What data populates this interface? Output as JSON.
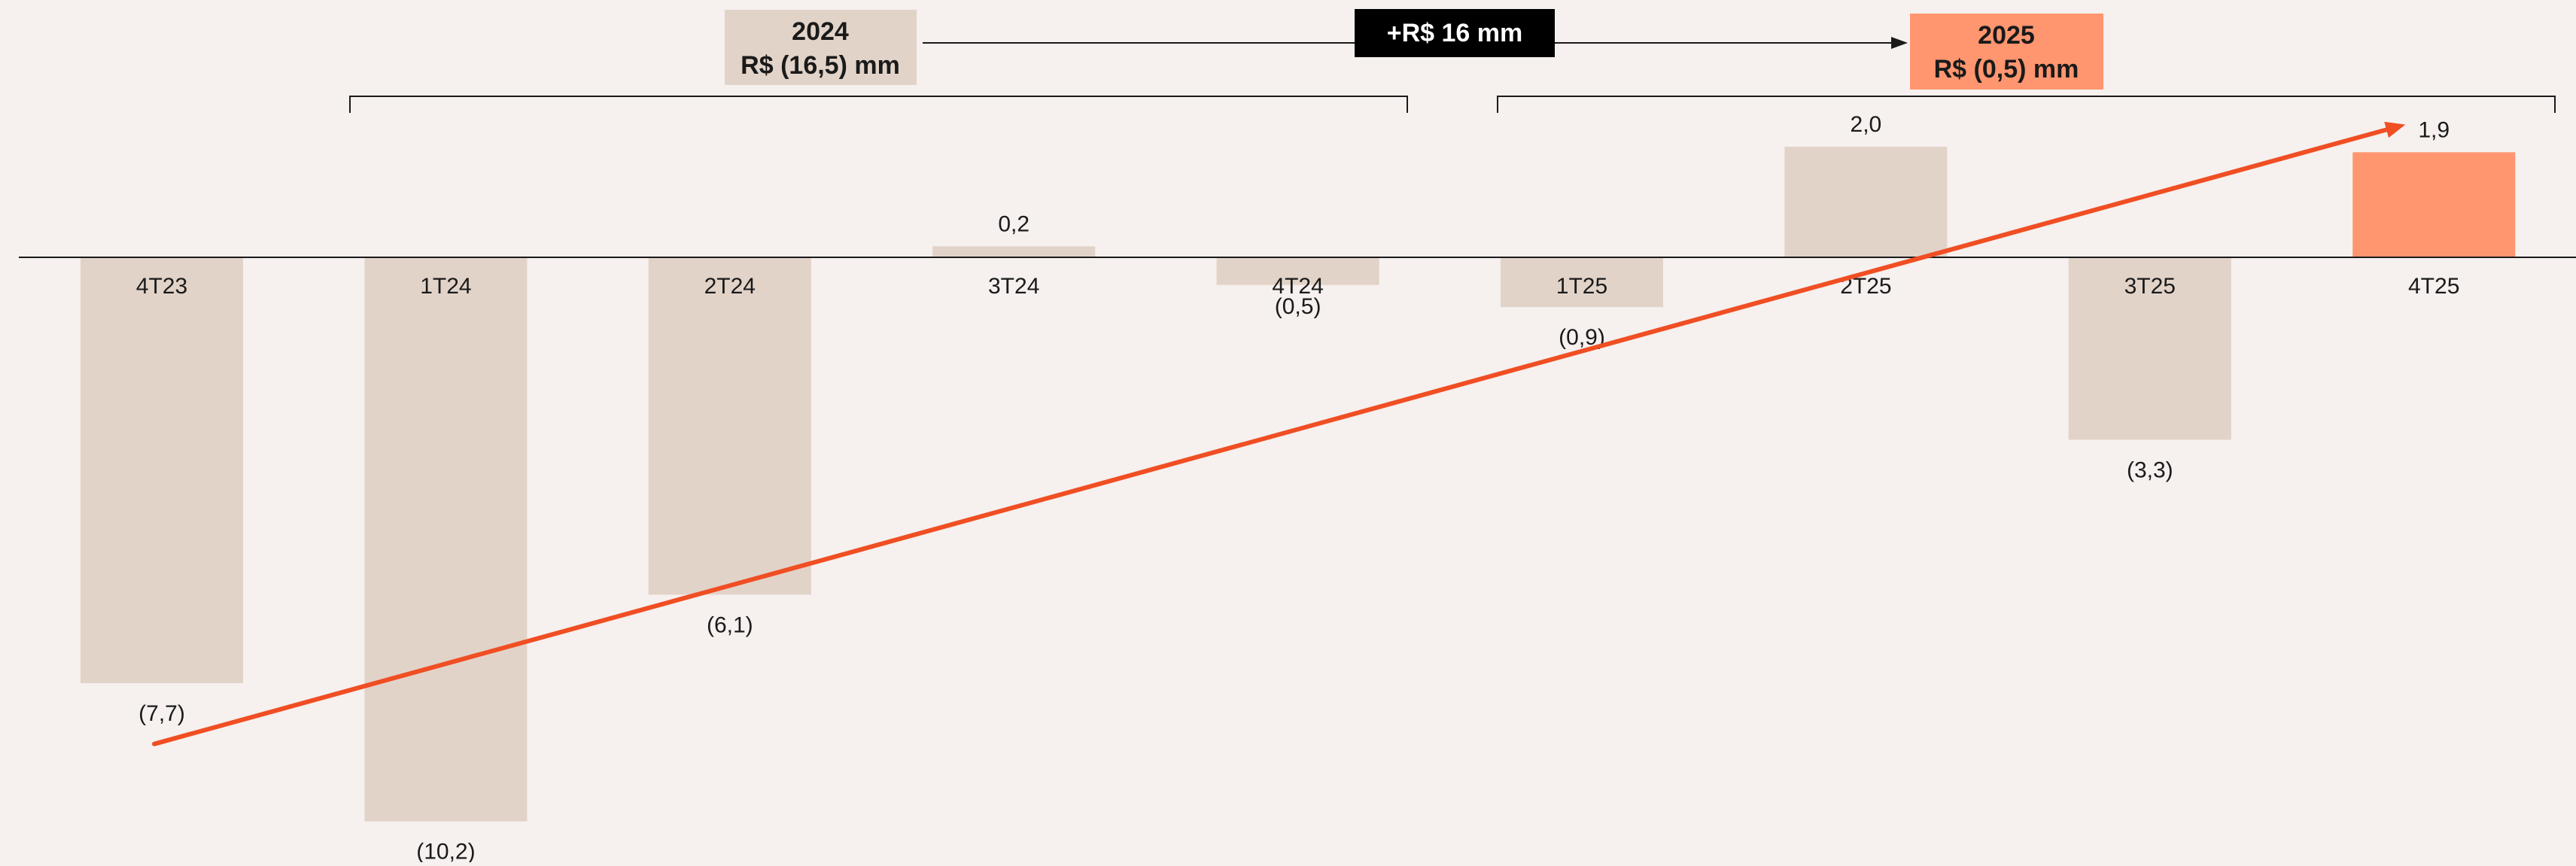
{
  "chart_data": {
    "type": "bar",
    "categories": [
      "4T23",
      "1T24",
      "2T24",
      "3T24",
      "4T24",
      "1T25",
      "2T25",
      "3T25",
      "4T25"
    ],
    "values": [
      -7.7,
      -10.2,
      -6.1,
      0.2,
      -0.5,
      -0.9,
      2.0,
      -3.3,
      1.9
    ],
    "value_labels": [
      "(7,7)",
      "(10,2)",
      "(6,1)",
      "0,2",
      "(0,5)",
      "(0,9)",
      "2,0",
      "(3,3)",
      "1,9"
    ],
    "highlight_index": 8,
    "trend_line": {
      "from_index": 0,
      "from_value": -8.8,
      "to_index": 8,
      "to_value": 2.4
    },
    "colors": {
      "bar": "#E2D3C9",
      "highlight": "#FF9670",
      "trend": "#F04E23",
      "axis": "#1A1A1A",
      "background": "#F6F0EE"
    }
  },
  "summary": {
    "year_2024": {
      "year": "2024",
      "value": "R$ (16,5) mm",
      "group": [
        1,
        4
      ],
      "color": "#E2D3C9"
    },
    "year_2025": {
      "year": "2025",
      "value": "R$ (0,5) mm",
      "group": [
        5,
        8
      ],
      "color": "#FF9670"
    },
    "delta": {
      "label": "+R$ 16 mm",
      "color": "#000000"
    }
  }
}
